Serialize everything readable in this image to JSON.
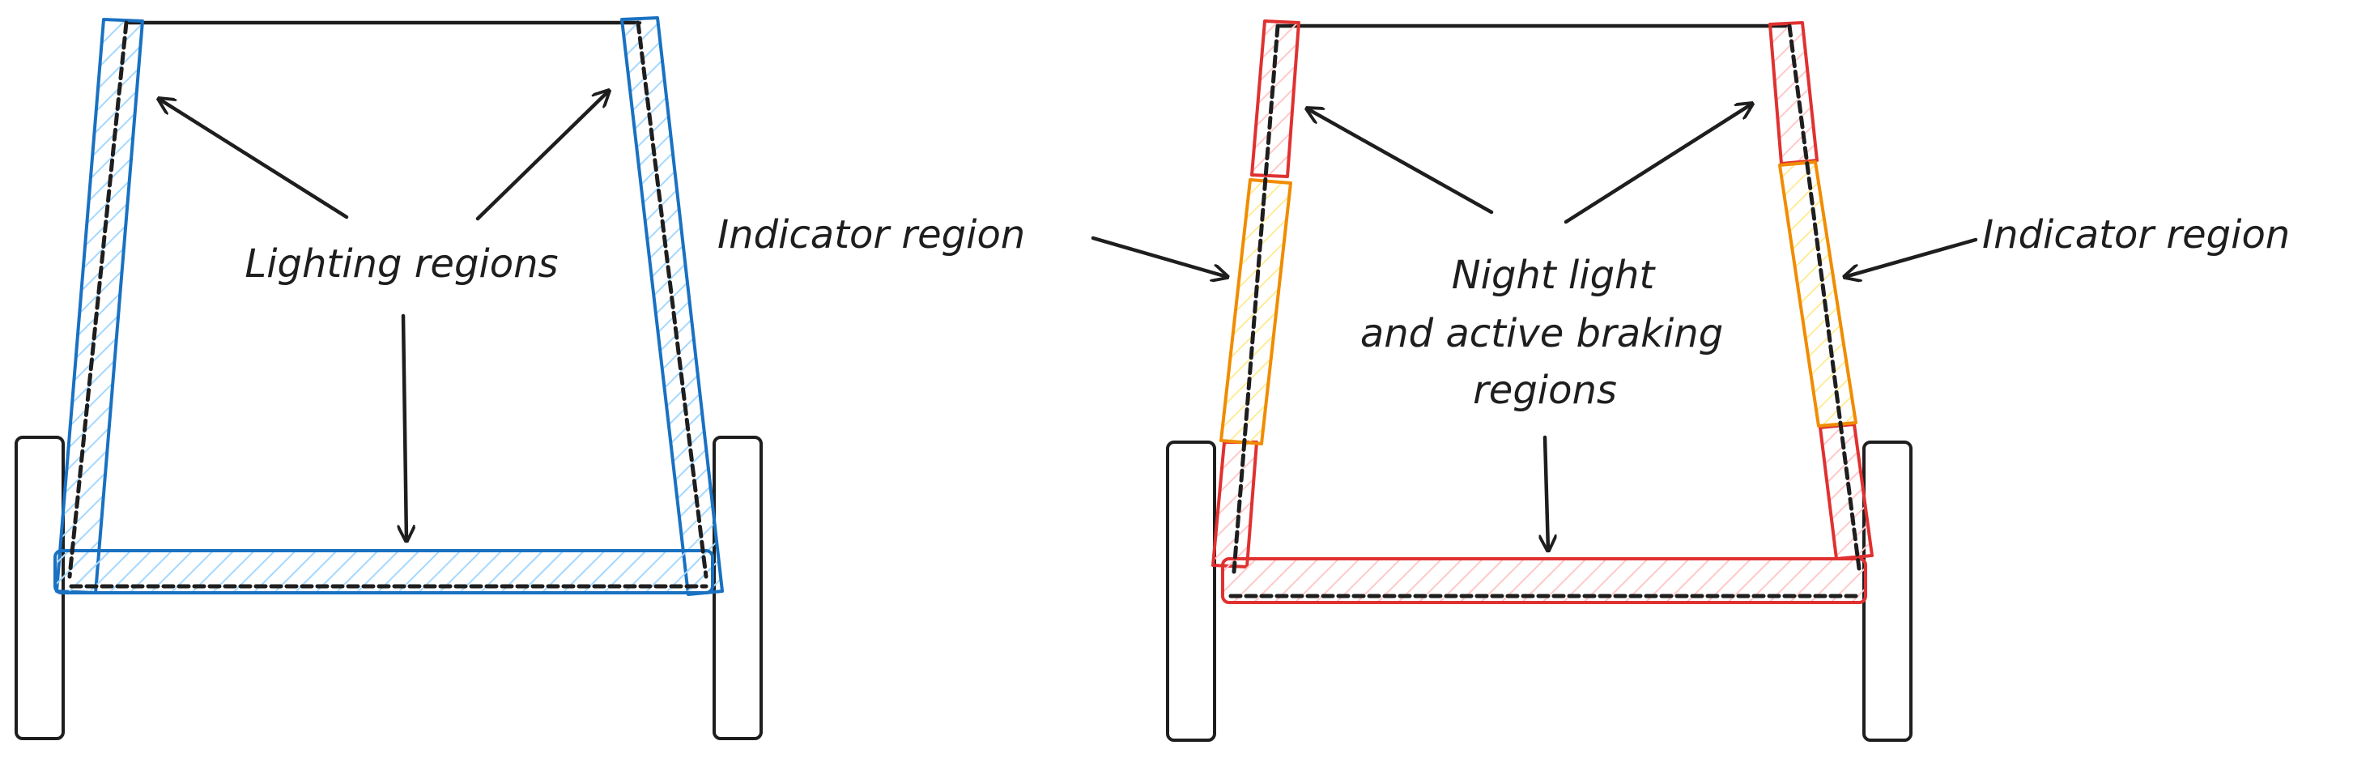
{
  "colors": {
    "ink": "#1e1e1e",
    "lighting": "#1971c2",
    "lighting_fill": "#a5d8ff",
    "night_braking": "#e03131",
    "night_braking_fill": "#ffc9c9",
    "indicator": "#f08c00",
    "indicator_fill": "#ffec99"
  },
  "left_diagram": {
    "label": "Lighting regions"
  },
  "right_diagram": {
    "center_label_line1": "Night light",
    "center_label_line2": "and active braking",
    "center_label_line3": "regions",
    "indicator_left": "Indicator region",
    "indicator_right": "Indicator region"
  }
}
